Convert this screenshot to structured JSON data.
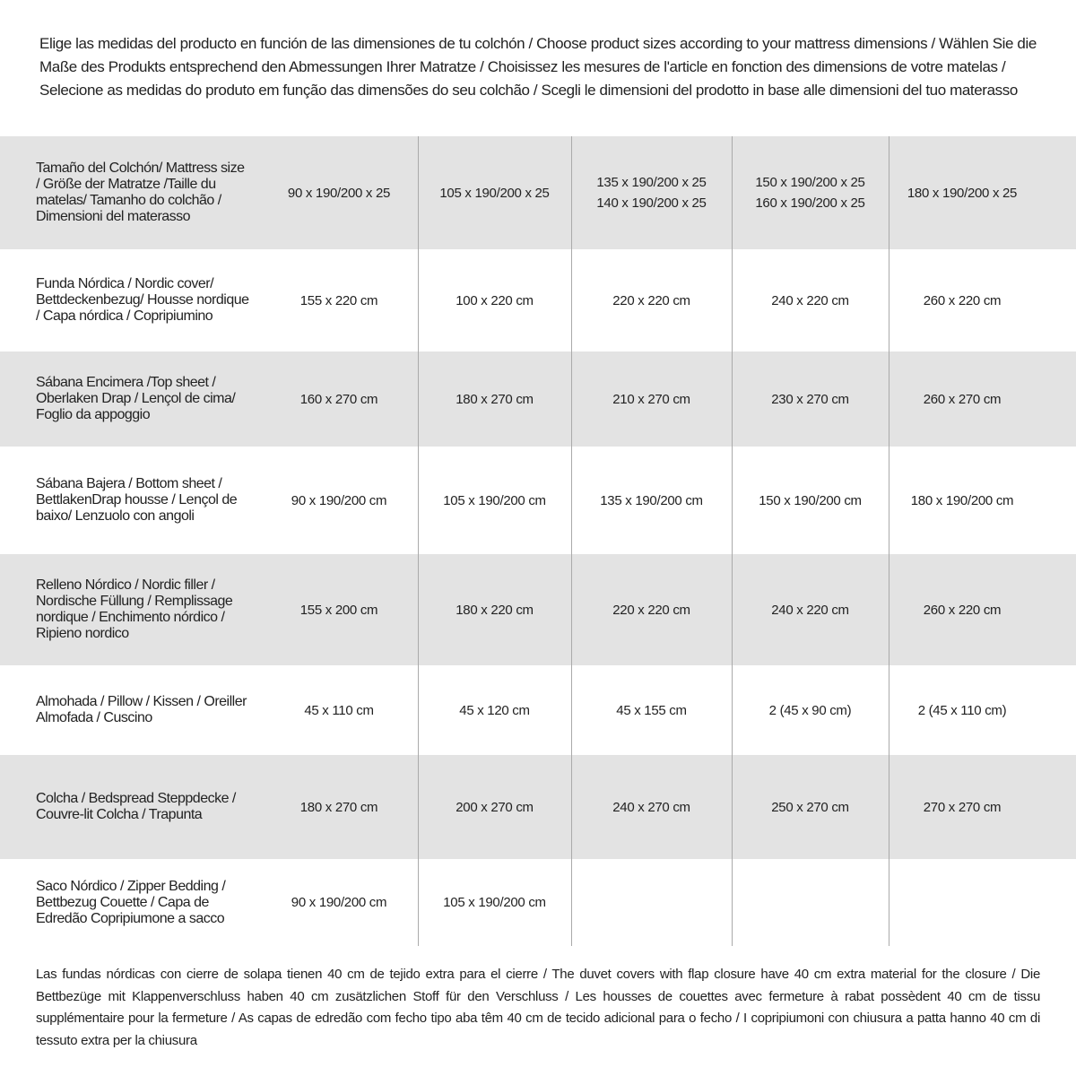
{
  "intro": "Elige las medidas del producto en función de las dimensiones de tu colchón / Choose product sizes according to your mattress dimensions / Wählen Sie die Maße des Produkts entsprechend den Abmessungen Ihrer Matratze / Choisissez les mesures de l'article en fonction des dimensions de votre matelas / Selecione as medidas do produto em função das dimensões do seu colchão / Scegli le dimensioni del prodotto in base alle dimensioni del tuo materasso",
  "table": {
    "rows": [
      {
        "label": "Tamaño del Colchón/ Mattress size / Größe der Matratze /Taille du matelas/ Tamanho do colchão / Dimensioni del materasso",
        "cells": [
          "90 x 190/200 x 25",
          "105 x 190/200 x 25",
          "135 x 190/200 x 25\n140 x 190/200 x 25",
          "150 x 190/200 x 25\n160 x 190/200 x 25",
          "180 x 190/200 x 25"
        ]
      },
      {
        "label": "Funda Nórdica / Nordic cover/ Bettdeckenbezug/ Housse nordique / Capa nórdica / Copripiumino",
        "cells": [
          "155 x 220 cm",
          "100 x 220 cm",
          "220 x 220 cm",
          "240 x 220 cm",
          "260 x 220 cm"
        ]
      },
      {
        "label": "Sábana Encimera /Top sheet / Oberlaken Drap / Lençol de cima/ Foglio da appoggio",
        "cells": [
          "160 x 270 cm",
          "180 x 270 cm",
          "210 x 270 cm",
          "230 x 270 cm",
          "260 x 270 cm"
        ]
      },
      {
        "label": "Sábana Bajera / Bottom sheet / BettlakenDrap housse / Lençol de baixo/ Lenzuolo con angoli",
        "cells": [
          "90 x 190/200 cm",
          "105 x 190/200 cm",
          "135 x 190/200 cm",
          "150 x 190/200 cm",
          "180 x 190/200 cm"
        ]
      },
      {
        "label": "Relleno Nórdico / Nordic filler / Nordische Füllung / Remplissage nordique / Enchimento nórdico / Ripieno nordico",
        "cells": [
          "155 x 200 cm",
          "180 x 220 cm",
          "220 x 220 cm",
          "240 x 220 cm",
          "260 x 220 cm"
        ]
      },
      {
        "label": "Almohada / Pillow / Kissen / Oreiller Almofada / Cuscino",
        "cells": [
          "45 x 110 cm",
          "45 x 120 cm",
          "45 x 155 cm",
          "2 (45 x 90 cm)",
          "2 (45 x 110 cm)"
        ]
      },
      {
        "label": "Colcha / Bedspread Steppdecke / Couvre-lit Colcha / Trapunta",
        "cells": [
          "180 x 270 cm",
          "200 x 270 cm",
          "240 x 270 cm",
          "250 x 270 cm",
          "270 x 270 cm"
        ]
      },
      {
        "label": "Saco Nórdico / Zipper Bedding / Bettbezug Couette / Capa de Edredão Copripiumone a sacco",
        "cells": [
          "90 x 190/200 cm",
          "105 x 190/200 cm"
        ]
      }
    ]
  },
  "footer": "Las fundas nórdicas con cierre de solapa tienen 40 cm de tejido extra para el cierre / The duvet covers with flap closure have 40 cm extra material for the closure / Die Bettbezüge mit Klappenverschluss haben 40 cm zusätzlichen Stoff für den Verschluss / Les housses de couettes avec fermeture à rabat possèdent 40 cm de tissu supplémentaire pour la fermeture / As capas de edredão com fecho tipo aba têm 40 cm de tecido adicional para o fecho / I copripiumoni con chiusura a patta hanno 40 cm di tessuto extra per la chiusura"
}
